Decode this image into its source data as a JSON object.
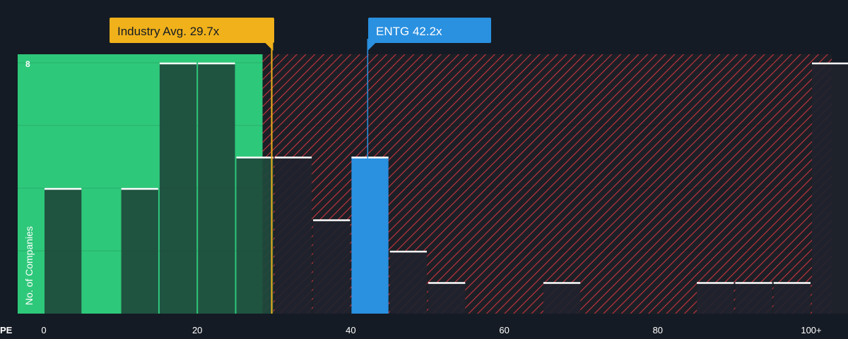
{
  "chart_data": {
    "type": "bar",
    "xlabel": "PE",
    "ylabel": "No. of Companies",
    "x_ticks": [
      "0",
      "20",
      "40",
      "60",
      "80",
      "100+"
    ],
    "y_ticks": [
      "8"
    ],
    "ylim": [
      0,
      8
    ],
    "xlim": [
      0,
      100
    ],
    "bin_width": 5,
    "bins": [
      {
        "x0": 0,
        "value": 4
      },
      {
        "x0": 10,
        "value": 4
      },
      {
        "x0": 15,
        "value": 8
      },
      {
        "x0": 20,
        "value": 8
      },
      {
        "x0": 25,
        "value": 5
      },
      {
        "x0": 30,
        "value": 5
      },
      {
        "x0": 35,
        "value": 3
      },
      {
        "x0": 40,
        "value": 5,
        "highlight": true
      },
      {
        "x0": 45,
        "value": 2
      },
      {
        "x0": 50,
        "value": 1
      },
      {
        "x0": 65,
        "value": 1
      },
      {
        "x0": 85,
        "value": 1
      },
      {
        "x0": 90,
        "value": 1
      },
      {
        "x0": 95,
        "value": 1
      },
      {
        "x0": 100,
        "value": 8
      }
    ],
    "industry_avg": {
      "label": "Industry Avg. 29.7x",
      "value": 29.7
    },
    "company": {
      "label": "ENTG 42.2x",
      "value": 42.2
    },
    "fair_value_upper": 28.5,
    "colors": {
      "background": "#151b24",
      "fair_zone": "#2ec87a",
      "overvalued_hatch": "#d63a45",
      "bar_dark": "#1e4a3c",
      "bar_overvalued": "#1f232c",
      "bar_top": "#ffffff",
      "company_bar": "#2a90e0",
      "industry_marker": "#f0b11a",
      "text": "#ffffff"
    },
    "grid": true
  }
}
